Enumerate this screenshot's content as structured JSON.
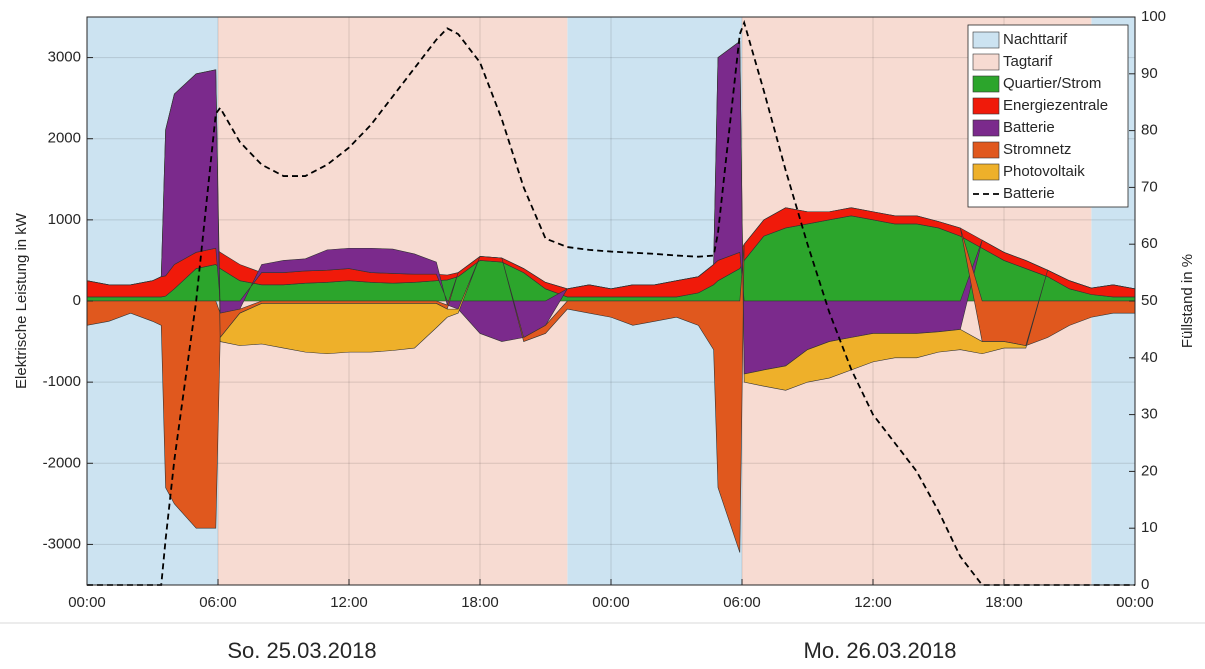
{
  "chart_data": {
    "type": "stacked_area",
    "ylabel": "Elektrische Leistung in kW",
    "y2label": "Füllstand in %",
    "date_labels": [
      "So. 25.03.2018",
      "Mo. 26.03.2018"
    ],
    "xlim": [
      0,
      48
    ],
    "xticks": [
      {
        "value": 0,
        "label": "00:00"
      },
      {
        "value": 6,
        "label": "06:00"
      },
      {
        "value": 12,
        "label": "12:00"
      },
      {
        "value": 18,
        "label": "18:00"
      },
      {
        "value": 24,
        "label": "00:00"
      },
      {
        "value": 30,
        "label": "06:00"
      },
      {
        "value": 36,
        "label": "12:00"
      },
      {
        "value": 42,
        "label": "18:00"
      },
      {
        "value": 48,
        "label": "00:00"
      }
    ],
    "ylim": [
      -3500,
      3500
    ],
    "yticks": [
      -3000,
      -2000,
      -1000,
      0,
      1000,
      2000,
      3000
    ],
    "y2lim": [
      0,
      100
    ],
    "y2ticks": [
      0,
      10,
      20,
      30,
      40,
      50,
      60,
      70,
      80,
      90,
      100
    ],
    "grid": true,
    "legend": "upper right",
    "tariffs": [
      {
        "name": "Nachttarif",
        "color": "#cce3f1",
        "intervals": [
          [
            0,
            6
          ],
          [
            22,
            30
          ],
          [
            46,
            48
          ]
        ]
      },
      {
        "name": "Tagtarif",
        "color": "#f7dbd2",
        "intervals": [
          [
            6,
            22
          ],
          [
            30,
            46
          ]
        ]
      }
    ],
    "x": [
      0,
      1,
      2,
      3,
      3.4,
      3.6,
      4,
      5,
      5.9,
      6.1,
      7,
      8,
      9,
      10,
      11,
      12,
      13,
      14,
      15,
      16,
      16.5,
      17,
      18,
      19,
      20,
      21,
      22,
      23,
      24,
      25,
      26,
      27,
      28,
      28.7,
      28.9,
      29.9,
      30.1,
      31,
      32,
      33,
      34,
      35,
      36,
      37,
      38,
      39,
      40,
      41,
      42,
      43,
      44,
      45,
      46,
      47,
      48
    ],
    "series": [
      {
        "name": "Quartier/Strom",
        "color": "#2ca52c",
        "values": [
          50,
          50,
          50,
          50,
          50,
          60,
          150,
          400,
          450,
          400,
          250,
          200,
          200,
          220,
          230,
          250,
          230,
          220,
          230,
          250,
          260,
          300,
          500,
          480,
          350,
          150,
          50,
          50,
          50,
          50,
          50,
          50,
          100,
          200,
          250,
          400,
          500,
          800,
          900,
          950,
          1000,
          1050,
          1000,
          950,
          950,
          900,
          800,
          650,
          500,
          400,
          300,
          150,
          80,
          50,
          50
        ]
      },
      {
        "name": "Energiezentrale",
        "color": "#f01a0a",
        "values": [
          200,
          150,
          150,
          200,
          250,
          250,
          300,
          200,
          200,
          200,
          200,
          150,
          150,
          150,
          150,
          150,
          120,
          120,
          100,
          80,
          60,
          50,
          50,
          50,
          50,
          80,
          100,
          150,
          100,
          150,
          150,
          200,
          200,
          250,
          250,
          200,
          200,
          200,
          250,
          150,
          100,
          100,
          100,
          100,
          100,
          80,
          100,
          100,
          100,
          100,
          80,
          100,
          80,
          150,
          100
        ]
      },
      {
        "name": "Batterie",
        "color": "#7b2a8c",
        "values": [
          0,
          0,
          0,
          0,
          0,
          1800,
          2100,
          2200,
          2200,
          -150,
          -100,
          100,
          150,
          150,
          250,
          250,
          300,
          300,
          250,
          150,
          -50,
          -100,
          -400,
          -500,
          -450,
          -300,
          0,
          0,
          0,
          0,
          0,
          0,
          0,
          0,
          2500,
          2600,
          -900,
          -850,
          -800,
          -600,
          -500,
          -450,
          -400,
          -400,
          -400,
          -380,
          -350,
          0,
          0,
          0,
          0,
          0,
          0,
          0,
          0
        ]
      },
      {
        "name": "Stromnetz",
        "color": "#e0581e",
        "values": [
          -300,
          -250,
          -150,
          -250,
          -300,
          -2300,
          -2500,
          -2800,
          -2800,
          -300,
          -50,
          -30,
          -30,
          -30,
          -30,
          -30,
          -30,
          -30,
          -30,
          -30,
          -50,
          0,
          0,
          0,
          -50,
          -100,
          -100,
          -150,
          -200,
          -300,
          -250,
          -200,
          -300,
          -600,
          -2300,
          -3100,
          0,
          0,
          0,
          0,
          0,
          0,
          0,
          0,
          0,
          0,
          0,
          -500,
          -500,
          -550,
          -450,
          -300,
          -200,
          -150,
          -150
        ]
      },
      {
        "name": "Photovoltaik",
        "color": "#eeb02a",
        "values": [
          0,
          0,
          0,
          0,
          0,
          0,
          0,
          0,
          0,
          -50,
          -400,
          -500,
          -550,
          -600,
          -620,
          -600,
          -600,
          -580,
          -550,
          -300,
          -100,
          -50,
          0,
          0,
          0,
          0,
          0,
          0,
          0,
          0,
          0,
          0,
          0,
          0,
          0,
          0,
          -100,
          -200,
          -300,
          -400,
          -450,
          -400,
          -350,
          -300,
          -300,
          -250,
          -250,
          -150,
          -80,
          -30,
          0,
          0,
          0,
          0,
          0
        ]
      }
    ],
    "y2_series": [
      {
        "name": "Batterie",
        "color": "#000000",
        "axis": "y2",
        "style": "dashed",
        "values": [
          0,
          0,
          0,
          0,
          0,
          8,
          22,
          50,
          83,
          84,
          78,
          74,
          72,
          72,
          74,
          77,
          81,
          86,
          91,
          96,
          98,
          97,
          92,
          82,
          70,
          61,
          59.5,
          59,
          58.7,
          58.5,
          58.3,
          58,
          57.8,
          58,
          62,
          97,
          99,
          87,
          73,
          60,
          48,
          38,
          30,
          25,
          20,
          13,
          5,
          0,
          0,
          0,
          0,
          0,
          0,
          0,
          0
        ]
      }
    ]
  }
}
